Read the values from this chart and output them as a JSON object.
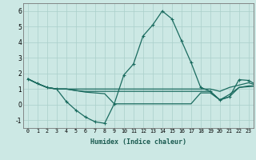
{
  "xlabel": "Humidex (Indice chaleur)",
  "bg_color": "#cce8e4",
  "grid_color": "#aacfca",
  "line_color": "#1a6b5f",
  "xlim": [
    -0.5,
    23.5
  ],
  "ylim": [
    -1.5,
    6.5
  ],
  "yticks": [
    -1,
    0,
    1,
    2,
    3,
    4,
    5,
    6
  ],
  "xticks": [
    0,
    1,
    2,
    3,
    4,
    5,
    6,
    7,
    8,
    9,
    10,
    11,
    12,
    13,
    14,
    15,
    16,
    17,
    18,
    19,
    20,
    21,
    22,
    23
  ],
  "main_line": [
    1.65,
    1.35,
    1.1,
    1.0,
    0.2,
    -0.35,
    -0.8,
    -1.1,
    -1.2,
    0.05,
    1.9,
    2.6,
    4.4,
    5.1,
    6.0,
    5.5,
    4.1,
    2.7,
    1.1,
    0.85,
    0.3,
    0.5,
    1.6,
    1.55,
    1.2
  ],
  "extra_lines": [
    [
      1.65,
      1.35,
      1.1,
      1.0,
      1.0,
      1.0,
      1.0,
      1.0,
      1.0,
      1.0,
      1.0,
      1.0,
      1.0,
      1.0,
      1.0,
      1.0,
      1.0,
      1.0,
      1.0,
      1.0,
      0.85,
      1.1,
      1.25,
      1.4,
      1.2
    ],
    [
      1.65,
      1.35,
      1.1,
      1.0,
      1.0,
      0.9,
      0.85,
      0.85,
      0.85,
      0.85,
      0.85,
      0.85,
      0.85,
      0.85,
      0.85,
      0.85,
      0.85,
      0.85,
      0.85,
      0.85,
      0.3,
      0.65,
      1.1,
      1.2,
      1.2
    ],
    [
      1.65,
      1.35,
      1.1,
      1.0,
      1.0,
      0.9,
      0.8,
      0.75,
      0.7,
      0.05,
      0.05,
      0.05,
      0.05,
      0.05,
      0.05,
      0.05,
      0.05,
      0.05,
      0.75,
      0.75,
      0.3,
      0.5,
      1.1,
      1.15,
      1.2
    ]
  ]
}
